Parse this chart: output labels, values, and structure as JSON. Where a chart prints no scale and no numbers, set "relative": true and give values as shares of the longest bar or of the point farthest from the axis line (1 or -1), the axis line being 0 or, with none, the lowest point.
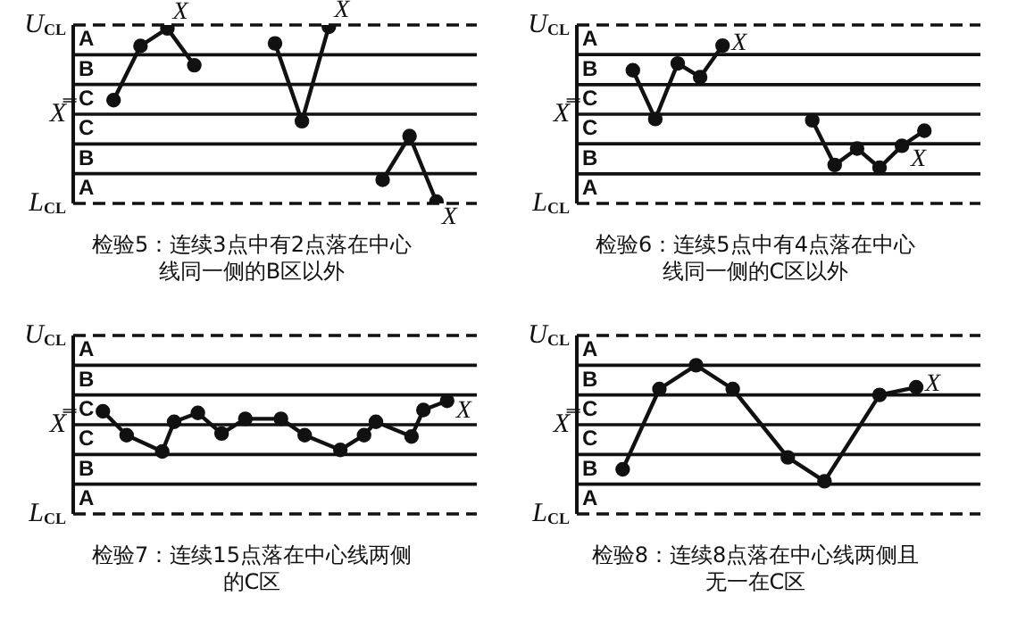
{
  "chart_data": [
    {
      "type": "line",
      "title": "检验5：连续3点中有2点落在中心线同一侧的B区以外",
      "relative": true,
      "categories": [
        null,
        null,
        null,
        null,
        null,
        null,
        null,
        null,
        null,
        null,
        null,
        null,
        null,
        null,
        null
      ],
      "series": [
        {
          "color": "#111111",
          "values": [
            null,
            0.16,
            0.78,
            0.98,
            0.56,
            null,
            null,
            null,
            null,
            null,
            null,
            null,
            null,
            null,
            null
          ]
        },
        {
          "color": "#111111",
          "values": [
            null,
            null,
            null,
            null,
            null,
            null,
            null,
            0.81,
            -0.08,
            1,
            null,
            null,
            null,
            null,
            null
          ]
        },
        {
          "color": "#111111",
          "values": [
            null,
            null,
            null,
            null,
            null,
            null,
            null,
            null,
            null,
            null,
            null,
            -0.75,
            -0.25,
            -1,
            null
          ]
        }
      ],
      "tick_labels": false,
      "legend": false,
      "marker": "circle",
      "line_style": "solid",
      "ref_lines": [
        {
          "axis": "y",
          "value": 1.02,
          "label": "U$_{CL}$",
          "line_style": "dashed"
        },
        {
          "axis": "y",
          "value": 0.68,
          "line_style": "solid"
        },
        {
          "axis": "y",
          "value": 0.34,
          "line_style": "solid"
        },
        {
          "axis": "y",
          "value": 0,
          "label": "X̿",
          "line_style": "solid"
        },
        {
          "axis": "y",
          "value": -0.34,
          "line_style": "solid"
        },
        {
          "axis": "y",
          "value": -0.68,
          "line_style": "solid"
        },
        {
          "axis": "y",
          "value": -1.02,
          "label": "L$_{CL}$",
          "line_style": "dashed"
        }
      ],
      "annotations": [
        "A",
        "B",
        "C",
        "C",
        "B",
        "A",
        {
          "text": "X",
          "y": 0.98
        },
        {
          "text": "X",
          "y": 1
        },
        {
          "text": "X",
          "y": -1
        }
      ]
    },
    {
      "type": "line",
      "title": "检验6：连续5点中有4点落在中心线同一侧的C区以外",
      "relative": true,
      "categories": [
        null,
        null,
        null,
        null,
        null,
        null,
        null,
        null,
        null,
        null,
        null,
        null,
        null,
        null,
        null,
        null,
        null,
        null
      ],
      "series": [
        {
          "color": "#111111",
          "values": [
            null,
            null,
            0.64,
            -0.07,
            0.74,
            0.54,
            1,
            null,
            null,
            null,
            null,
            null,
            null,
            null,
            null,
            null,
            null,
            null
          ]
        },
        {
          "color": "#111111",
          "values": [
            null,
            null,
            null,
            null,
            null,
            null,
            null,
            null,
            null,
            null,
            -0.09,
            -0.74,
            -0.5,
            -0.78,
            -0.46,
            -0.24,
            null,
            null
          ]
        }
      ],
      "tick_labels": false,
      "legend": false,
      "marker": "circle",
      "line_style": "solid",
      "ref_lines": [
        {
          "axis": "y",
          "value": 1.3,
          "label": "U$_{CL}$",
          "line_style": "dashed"
        },
        {
          "axis": "y",
          "value": 0.87,
          "line_style": "solid"
        },
        {
          "axis": "y",
          "value": 0.43,
          "line_style": "solid"
        },
        {
          "axis": "y",
          "value": 0,
          "label": "X̿",
          "line_style": "solid"
        },
        {
          "axis": "y",
          "value": -0.43,
          "line_style": "solid"
        },
        {
          "axis": "y",
          "value": -0.87,
          "line_style": "solid"
        },
        {
          "axis": "y",
          "value": -1.3,
          "label": "L$_{CL}$",
          "line_style": "dashed"
        }
      ],
      "annotations": [
        "A",
        "B",
        "C",
        "C",
        "B",
        "A",
        {
          "text": "X",
          "y": 1
        },
        {
          "text": "X",
          "y": -0.46
        }
      ]
    },
    {
      "type": "line",
      "title": "检验7：连续15点落在中心线两侧的C区",
      "relative": true,
      "categories": [
        null,
        null,
        null,
        null,
        null,
        null,
        null,
        null,
        null,
        null,
        null,
        null,
        null,
        null,
        null,
        null,
        null,
        null,
        null,
        null,
        null,
        null,
        null,
        null,
        null,
        null,
        null,
        null,
        null,
        null,
        null,
        null,
        null,
        null
      ],
      "series": [
        {
          "color": "#111111",
          "values": [
            null,
            null,
            0.5,
            null,
            -0.39,
            null,
            null,
            -1,
            0.11,
            null,
            0.44,
            null,
            -0.33,
            null,
            0.22,
            null,
            null,
            0.22,
            null,
            -0.39,
            null,
            null,
            -0.94,
            null,
            -0.39,
            0.11,
            null,
            null,
            -0.44,
            0.55,
            null,
            0.89,
            null,
            null
          ]
        }
      ],
      "tick_labels": false,
      "legend": false,
      "marker": "circle",
      "line_style": "solid",
      "ref_lines": [
        {
          "axis": "y",
          "value": 3.33,
          "label": "U$_{CL}$",
          "line_style": "dashed"
        },
        {
          "axis": "y",
          "value": 2.22,
          "line_style": "solid"
        },
        {
          "axis": "y",
          "value": 1.11,
          "line_style": "solid"
        },
        {
          "axis": "y",
          "value": 0,
          "label": "X̿",
          "line_style": "solid"
        },
        {
          "axis": "y",
          "value": -1.11,
          "line_style": "solid"
        },
        {
          "axis": "y",
          "value": -2.22,
          "line_style": "solid"
        },
        {
          "axis": "y",
          "value": -3.33,
          "label": "L$_{CL}$",
          "line_style": "dashed"
        }
      ],
      "annotations": [
        "A",
        "B",
        "C",
        "C",
        "B",
        "A",
        {
          "text": "X",
          "y": 0.89
        }
      ]
    },
    {
      "type": "line",
      "title": "检验8：连续8点落在中心线两侧且无一在C区",
      "relative": true,
      "categories": [
        null,
        null,
        null,
        null,
        null,
        null,
        null,
        null,
        null,
        null,
        null,
        null,
        null,
        null,
        null,
        null,
        null,
        null,
        null,
        null,
        null,
        null
      ],
      "series": [
        {
          "color": "#111111",
          "values": [
            null,
            null,
            -0.75,
            null,
            0.6,
            null,
            1,
            null,
            0.6,
            null,
            null,
            -0.55,
            null,
            -0.95,
            null,
            null,
            0.5,
            null,
            0.63,
            null,
            null,
            null
          ]
        }
      ],
      "tick_labels": false,
      "legend": false,
      "marker": "circle",
      "line_style": "solid",
      "ref_lines": [
        {
          "axis": "y",
          "value": 1.5,
          "label": "U$_{CL}$",
          "line_style": "dashed"
        },
        {
          "axis": "y",
          "value": 1,
          "line_style": "solid"
        },
        {
          "axis": "y",
          "value": 0.5,
          "line_style": "solid"
        },
        {
          "axis": "y",
          "value": 0,
          "label": "X̿",
          "line_style": "solid"
        },
        {
          "axis": "y",
          "value": -0.5,
          "line_style": "solid"
        },
        {
          "axis": "y",
          "value": -1,
          "line_style": "solid"
        },
        {
          "axis": "y",
          "value": -1.5,
          "label": "L$_{CL}$",
          "line_style": "dashed"
        }
      ],
      "annotations": [
        "A",
        "B",
        "C",
        "C",
        "B",
        "A",
        {
          "text": "X",
          "y": 0.63
        }
      ]
    }
  ]
}
